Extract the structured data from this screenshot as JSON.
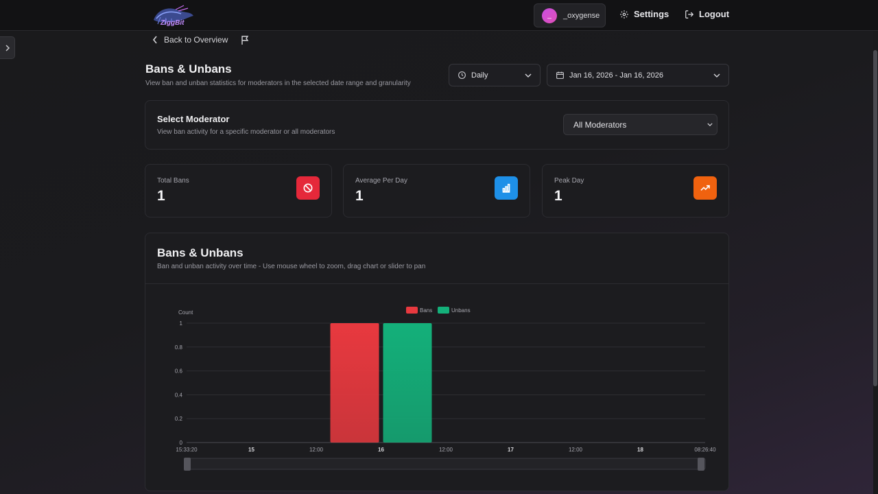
{
  "header": {
    "user_name": "_oxygense",
    "avatar_initial": "_",
    "settings_label": "Settings",
    "logout_label": "Logout"
  },
  "nav": {
    "back_label": "Back to Overview"
  },
  "page": {
    "title": "Bans & Unbans",
    "subtitle": "View ban and unban statistics for moderators in the selected date range and granularity"
  },
  "filters": {
    "granularity": "Daily",
    "date_range": "Jan 16, 2026 - Jan 16, 2026"
  },
  "moderator_select": {
    "title": "Select Moderator",
    "subtitle": "View ban activity for a specific moderator or all moderators",
    "selected": "All Moderators"
  },
  "stats": [
    {
      "label": "Total Bans",
      "value": "1",
      "color": "#e5283a",
      "icon": "ban-icon"
    },
    {
      "label": "Average Per Day",
      "value": "1",
      "color": "#1e90e8",
      "icon": "bar-chart-icon"
    },
    {
      "label": "Peak Day",
      "value": "1",
      "color": "#f0620f",
      "icon": "trending-up-icon"
    }
  ],
  "chart_card": {
    "title": "Bans & Unbans",
    "subtitle": "Ban and unban activity over time - Use mouse wheel to zoom, drag chart or slider to pan"
  },
  "chart_data": {
    "type": "bar",
    "title": "Bans & Unbans",
    "ylabel": "Count",
    "xlabel": "",
    "ylim": [
      0,
      1
    ],
    "yticks": [
      0,
      0.2,
      0.4,
      0.6,
      0.8,
      1
    ],
    "x_tick_labels": [
      "15:33:20",
      "15",
      "12:00",
      "16",
      "12:00",
      "17",
      "12:00",
      "18",
      "08:26:40"
    ],
    "legend": [
      "Bans",
      "Unbans"
    ],
    "legend_position": "top-center",
    "categories": [
      "Jan 16, 2026"
    ],
    "series": [
      {
        "name": "Bans",
        "values": [
          1
        ],
        "color": "#e8393f"
      },
      {
        "name": "Unbans",
        "values": [
          1
        ],
        "color": "#14b07a"
      }
    ]
  }
}
